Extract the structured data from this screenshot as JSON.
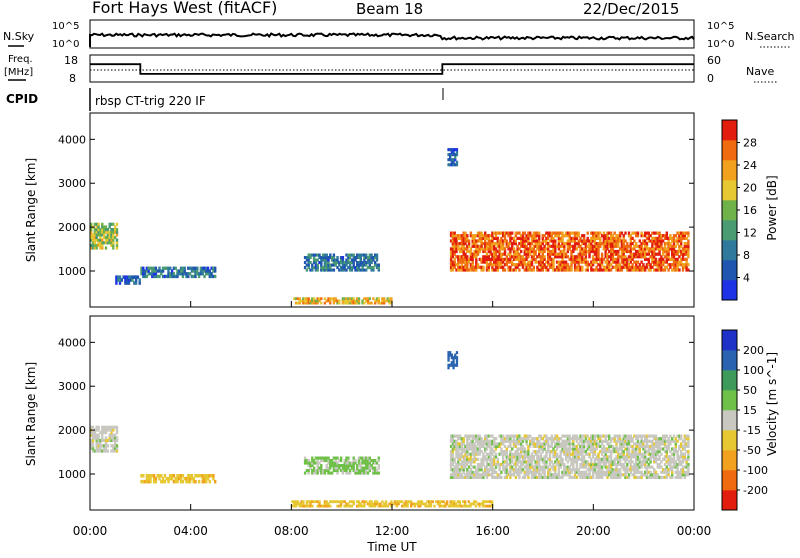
{
  "header": {
    "station": "Fort Hays West (fitACF)",
    "beam": "Beam 18",
    "date": "22/Dec/2015"
  },
  "noise_panel": {
    "left_label": "N.Sky",
    "right_label": "N.Search",
    "left_ticks": [
      "10^5",
      "10^0"
    ],
    "right_ticks": [
      "10^5",
      "10^0"
    ]
  },
  "freq_panel": {
    "left_label_line1": "Freq.",
    "left_label_line2": "[MHz]",
    "right_label": "Nave",
    "left_ticks": [
      "18",
      "8"
    ],
    "right_ticks": [
      "60",
      "0"
    ],
    "freq_segments": [
      {
        "t0": 0,
        "t1": 2,
        "mhz": 14.6
      },
      {
        "t0": 2,
        "t1": 14,
        "mhz": 11.0
      },
      {
        "t0": 14,
        "t1": 24,
        "mhz": 14.6
      }
    ]
  },
  "cpid": {
    "label": "CPID",
    "program": "rbsp CT-trig 220 IF"
  },
  "colors": {
    "power": [
      "#1e32e6",
      "#1e56b0",
      "#2f7a9c",
      "#4a9a72",
      "#6fb24a",
      "#e6c832",
      "#f2a11e",
      "#f06a10",
      "#e21d0d"
    ],
    "velocity": [
      "#e21d0d",
      "#f06a10",
      "#f2a11e",
      "#e6c832",
      "#c8c8c0",
      "#6fc048",
      "#3e9a5a",
      "#2a64b0",
      "#1e32c8"
    ]
  },
  "chart_data": [
    {
      "type": "heatmap",
      "panel": "power",
      "ylabel": "Slant Range [km]",
      "y_ticks": [
        "4000",
        "3000",
        "2000",
        "1000"
      ],
      "y_tick_values": [
        4000,
        3000,
        2000,
        1000
      ],
      "ylim": [
        180,
        4600
      ],
      "xlim": [
        0,
        24
      ],
      "colorbar_label": "Power [dB]",
      "colorbar_ticks": [
        "4",
        "8",
        "12",
        "16",
        "20",
        "24",
        "28"
      ],
      "regions": [
        {
          "t0": 0.0,
          "t1": 1.1,
          "r0": 1500,
          "r1": 2100,
          "v": 18
        },
        {
          "t0": 1.0,
          "t1": 2.0,
          "r0": 700,
          "r1": 900,
          "v": 8
        },
        {
          "t0": 2.0,
          "t1": 5.0,
          "r0": 850,
          "r1": 1100,
          "v": 9
        },
        {
          "t0": 8.5,
          "t1": 11.5,
          "r0": 1000,
          "r1": 1400,
          "v": 10
        },
        {
          "t0": 8.0,
          "t1": 12.0,
          "r0": 250,
          "r1": 400,
          "v": 22
        },
        {
          "t0": 14.3,
          "t1": 23.8,
          "r0": 1000,
          "r1": 1900,
          "v": 27
        },
        {
          "t0": 14.2,
          "t1": 14.6,
          "r0": 3400,
          "r1": 3800,
          "v": 8
        }
      ]
    },
    {
      "type": "heatmap",
      "panel": "velocity",
      "ylabel": "Slant Range [km]",
      "y_ticks": [
        "4000",
        "3000",
        "2000",
        "1000"
      ],
      "y_tick_values": [
        4000,
        3000,
        2000,
        1000
      ],
      "ylim": [
        180,
        4600
      ],
      "xlim": [
        0,
        24
      ],
      "xlabel": "Time UT",
      "x_ticks": [
        "00:00",
        "04:00",
        "08:00",
        "12:00",
        "16:00",
        "20:00",
        "00:00"
      ],
      "x_tick_values": [
        0,
        4,
        8,
        12,
        16,
        20,
        24
      ],
      "colorbar_label": "Velocity [m s^-1]",
      "colorbar_ticks": [
        "200",
        "100",
        "50",
        "15",
        "-15",
        "-50",
        "-100",
        "-200"
      ],
      "regions": [
        {
          "t0": 0.0,
          "t1": 1.1,
          "r0": 1500,
          "r1": 2100,
          "v": 0
        },
        {
          "t0": 2.0,
          "t1": 5.0,
          "r0": 800,
          "r1": 1000,
          "v": -40
        },
        {
          "t0": 8.5,
          "t1": 11.5,
          "r0": 1000,
          "r1": 1400,
          "v": 20
        },
        {
          "t0": 8.0,
          "t1": 16.0,
          "r0": 250,
          "r1": 400,
          "v": -40
        },
        {
          "t0": 14.3,
          "t1": 23.8,
          "r0": 900,
          "r1": 1900,
          "v": 0
        },
        {
          "t0": 14.2,
          "t1": 14.6,
          "r0": 3400,
          "r1": 3800,
          "v": 120
        }
      ]
    }
  ]
}
